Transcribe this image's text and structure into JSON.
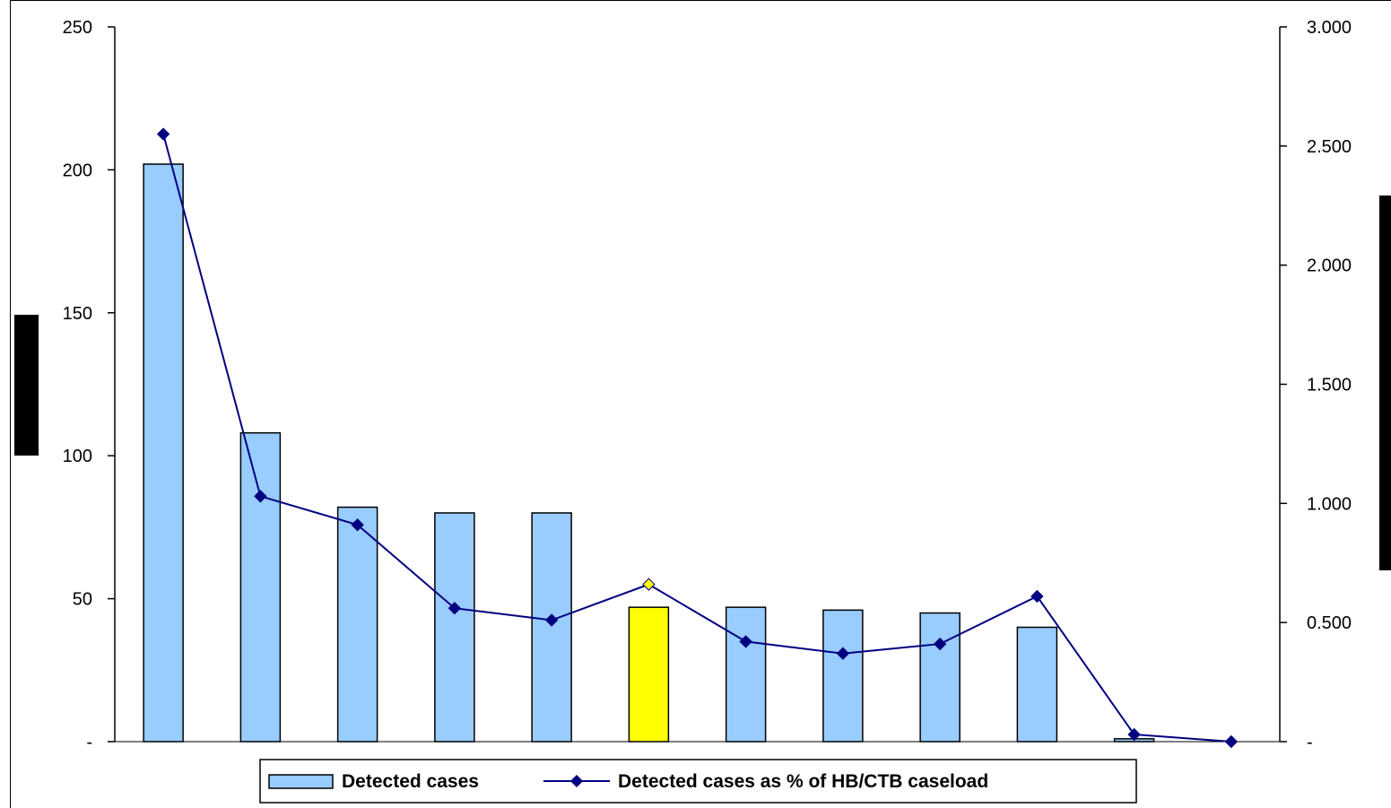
{
  "chart_data": {
    "type": "bar",
    "categories": [
      "",
      "",
      "",
      "",
      "",
      "",
      "",
      "",
      "",
      "",
      "",
      ""
    ],
    "series": [
      {
        "name": "Detected cases",
        "type": "bar",
        "axis": "left",
        "values": [
          202,
          108,
          82,
          80,
          80,
          47,
          47,
          46,
          45,
          40,
          1,
          0
        ],
        "color": "#99CCFF",
        "highlight_index": 5,
        "highlight_color": "#FFFF00"
      },
      {
        "name": "Detected cases as % of HB/CTB caseload",
        "type": "line",
        "axis": "right",
        "values": [
          2.55,
          1.03,
          0.91,
          0.56,
          0.51,
          0.66,
          0.42,
          0.37,
          0.41,
          0.61,
          0.03,
          0.0
        ],
        "color": "#000080",
        "marker": "diamond",
        "highlight_index": 5,
        "highlight_color": "#FFFF00"
      }
    ],
    "left_axis": {
      "ylim": [
        0,
        250
      ],
      "ticks": [
        0,
        50,
        100,
        150,
        200,
        250
      ],
      "tick_labels": [
        "-",
        "50",
        "100",
        "150",
        "200",
        "250"
      ]
    },
    "right_axis": {
      "ylim": [
        0,
        3
      ],
      "ticks": [
        0,
        0.5,
        1,
        1.5,
        2,
        2.5,
        3
      ],
      "tick_labels": [
        "-",
        "0.500",
        "1.000",
        "1.500",
        "2.000",
        "2.500",
        "3.000"
      ]
    },
    "legend": {
      "placement": "bottom",
      "entries": [
        "Detected cases",
        "Detected cases as % of HB/CTB caseload"
      ]
    },
    "grid": false
  }
}
